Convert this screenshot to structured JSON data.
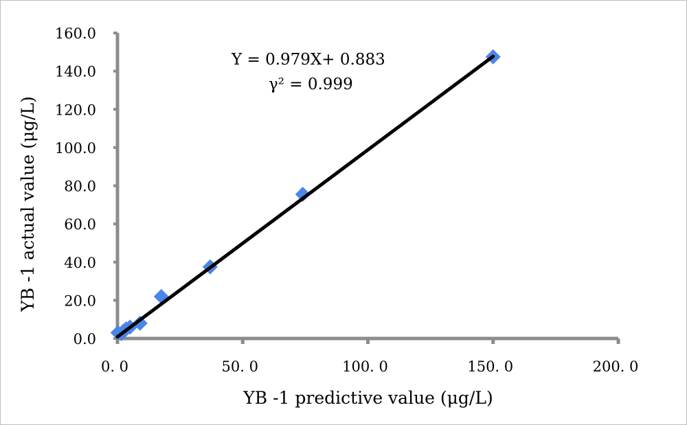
{
  "chart_data": {
    "type": "scatter",
    "xlabel": "YB -1 predictive value (μg/L)",
    "ylabel": "YB -1 actual value (μg/L)",
    "xlim": [
      0,
      200
    ],
    "ylim": [
      0,
      160
    ],
    "x_ticks": [
      0,
      50,
      100,
      150,
      200
    ],
    "x_tick_labels": [
      "0. 0",
      "50. 0",
      "100. 0",
      "150. 0",
      "200. 0"
    ],
    "y_ticks": [
      0,
      20,
      40,
      60,
      80,
      100,
      120,
      140,
      160
    ],
    "y_tick_labels": [
      "0.0",
      "20.0",
      "40.0",
      "60.0",
      "80.0",
      "100.0",
      "120.0",
      "140.0",
      "160.0"
    ],
    "grid": false,
    "series": [
      {
        "marker": "diamond",
        "color": "#4a86e8",
        "points": [
          {
            "x": 0.2,
            "y": 3.0
          },
          {
            "x": 1.5,
            "y": 2.5
          },
          {
            "x": 2.5,
            "y": 4.0
          },
          {
            "x": 3.5,
            "y": 5.0
          },
          {
            "x": 5.0,
            "y": 6.0
          },
          {
            "x": 9.0,
            "y": 8.0
          },
          {
            "x": 17.5,
            "y": 22.0
          },
          {
            "x": 37.0,
            "y": 37.5
          },
          {
            "x": 74.0,
            "y": 75.5
          },
          {
            "x": 150.0,
            "y": 147.5
          }
        ]
      }
    ],
    "trendline": {
      "color": "#000000",
      "slope": 0.979,
      "intercept": 0.883,
      "x_range": [
        0,
        150
      ]
    },
    "annotations": {
      "equation": "Y = 0.979X+ 0.883",
      "r2_label": "γ² =  0.999"
    }
  }
}
